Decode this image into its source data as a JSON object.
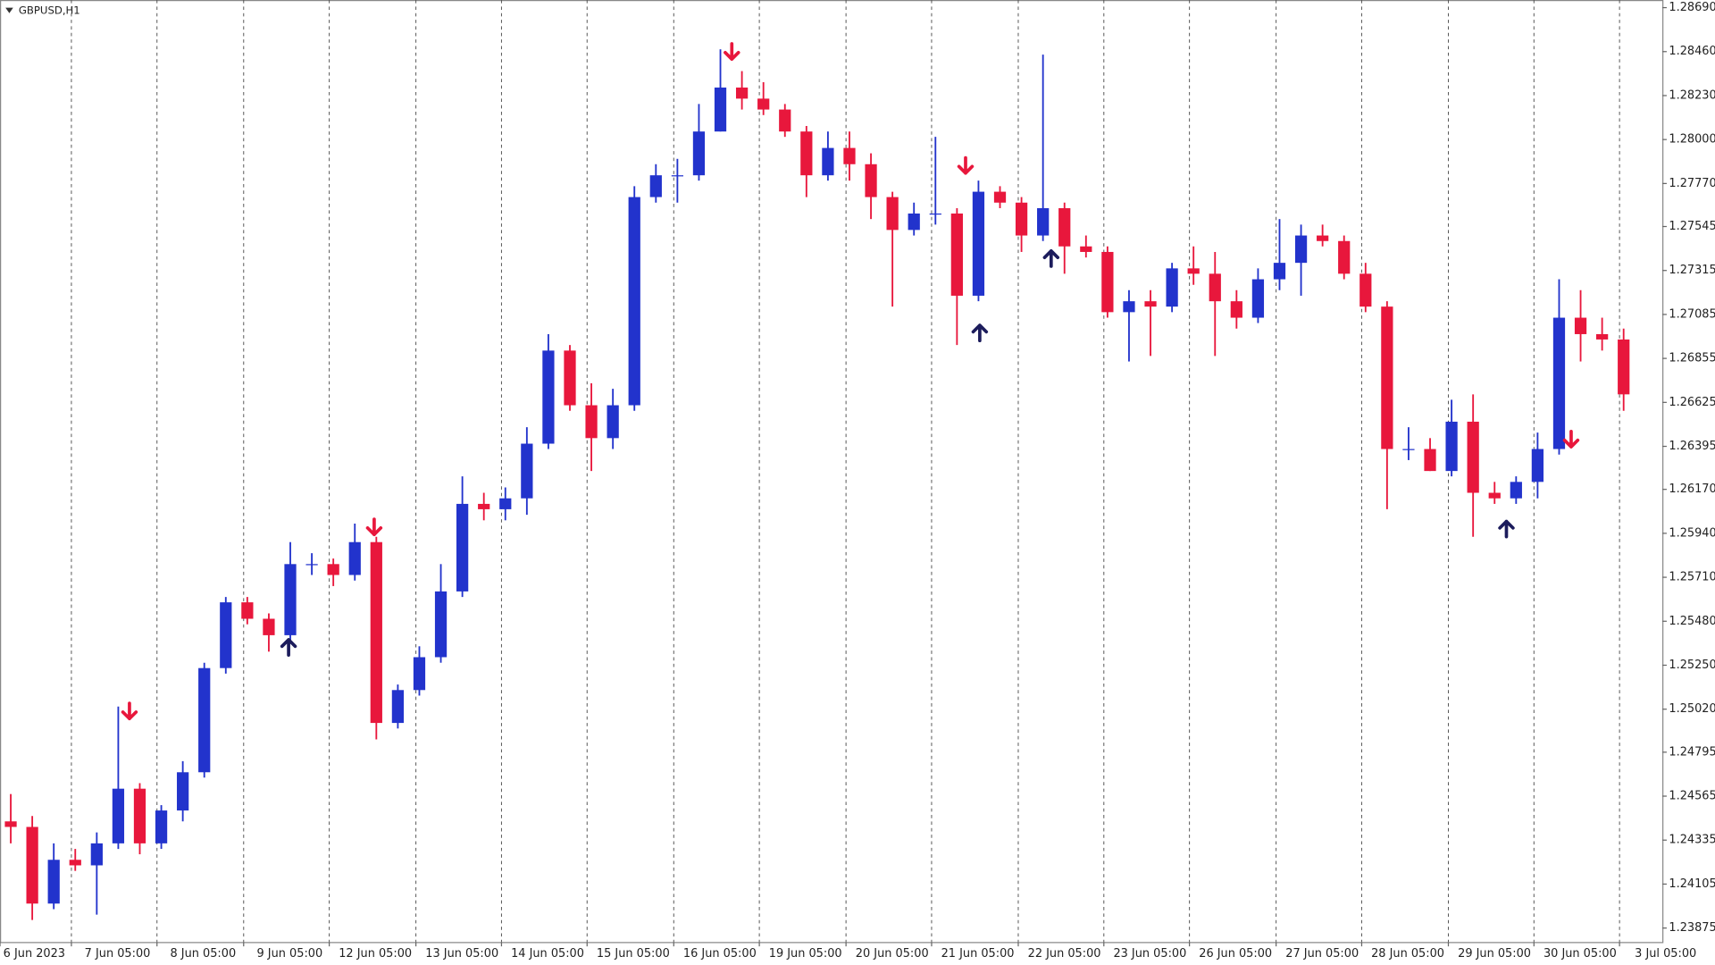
{
  "chart_data": {
    "type": "candlestick",
    "title": "GBPUSD,H1",
    "open": [
      1.24433,
      1.24404,
      1.24003,
      1.24232,
      1.24203,
      1.24318,
      1.24604,
      1.24318,
      1.2449,
      1.2469,
      1.25235,
      1.25579,
      1.25493,
      1.25407,
      1.25779,
      1.25779,
      1.25722,
      1.25894,
      1.24948,
      1.2512,
      1.25292,
      1.25636,
      1.26094,
      1.26066,
      1.26123,
      1.26409,
      1.26896,
      1.2661,
      1.26438,
      1.2661,
      1.27699,
      1.27813,
      1.27813,
      1.28042,
      1.28272,
      1.28214,
      1.28157,
      1.28042,
      1.27813,
      1.27956,
      1.27871,
      1.27699,
      1.27527,
      1.27613,
      1.27613,
      1.27183,
      1.27727,
      1.2767,
      1.27498,
      1.27641,
      1.27441,
      1.27412,
      1.27097,
      1.27154,
      1.27126,
      1.27326,
      1.27298,
      1.27154,
      1.27068,
      1.27269,
      1.27355,
      1.27498,
      1.27469,
      1.27298,
      1.27126,
      1.26381,
      1.26381,
      1.26266,
      1.26524,
      1.26152,
      1.26123,
      1.26209,
      1.26381,
      1.27068,
      1.26982,
      1.26954
    ],
    "high": [
      1.24576,
      1.24461,
      1.24318,
      1.24289,
      1.24375,
      1.25034,
      1.24633,
      1.24518,
      1.24748,
      1.25263,
      1.25607,
      1.25607,
      1.25521,
      1.25894,
      1.25836,
      1.25808,
      1.25991,
      1.25922,
      1.25149,
      1.25349,
      1.25779,
      1.26238,
      1.26152,
      1.2618,
      1.26495,
      1.26982,
      1.26925,
      1.26725,
      1.26696,
      1.27756,
      1.27871,
      1.27899,
      1.28186,
      1.28472,
      1.28358,
      1.283,
      1.28186,
      1.28071,
      1.28042,
      1.28042,
      1.27928,
      1.27727,
      1.2767,
      1.28014,
      1.27641,
      1.27785,
      1.27756,
      1.27699,
      1.28444,
      1.2767,
      1.27498,
      1.27441,
      1.27212,
      1.27212,
      1.27355,
      1.27441,
      1.27412,
      1.27212,
      1.27326,
      1.27584,
      1.27555,
      1.27555,
      1.27498,
      1.27355,
      1.27154,
      1.26495,
      1.26438,
      1.26639,
      1.26667,
      1.26209,
      1.26238,
      1.26467,
      1.27269,
      1.27212,
      1.27068,
      1.27011
    ],
    "low": [
      1.24318,
      1.23917,
      1.23974,
      1.24174,
      1.23945,
      1.24289,
      1.24261,
      1.24289,
      1.24433,
      1.24662,
      1.25206,
      1.25464,
      1.25321,
      1.25378,
      1.25722,
      1.25664,
      1.25693,
      1.24862,
      1.24919,
      1.25091,
      1.25263,
      1.25607,
      1.26008,
      1.26008,
      1.26037,
      1.26381,
      1.26581,
      1.26266,
      1.26381,
      1.26581,
      1.2767,
      1.2767,
      1.27785,
      1.28042,
      1.28157,
      1.28128,
      1.28014,
      1.27699,
      1.27785,
      1.27785,
      1.27584,
      1.27126,
      1.27498,
      1.27555,
      1.26925,
      1.27154,
      1.27641,
      1.27412,
      1.27469,
      1.27298,
      1.27383,
      1.27068,
      1.26839,
      1.26868,
      1.27097,
      1.2724,
      1.26868,
      1.27011,
      1.2704,
      1.27212,
      1.27183,
      1.27441,
      1.27269,
      1.27097,
      1.26066,
      1.26323,
      1.26266,
      1.26238,
      1.25922,
      1.26094,
      1.26094,
      1.26123,
      1.26352,
      1.26839,
      1.26896,
      1.26581
    ],
    "close": [
      1.24404,
      1.24003,
      1.24232,
      1.24203,
      1.24318,
      1.24604,
      1.24318,
      1.2449,
      1.2469,
      1.25235,
      1.25579,
      1.25493,
      1.25407,
      1.25779,
      1.25779,
      1.25722,
      1.25894,
      1.24948,
      1.2512,
      1.25292,
      1.25636,
      1.26094,
      1.26066,
      1.26123,
      1.26409,
      1.26896,
      1.2661,
      1.26438,
      1.2661,
      1.27699,
      1.27813,
      1.27813,
      1.28042,
      1.28272,
      1.28214,
      1.28157,
      1.28042,
      1.27813,
      1.27956,
      1.27871,
      1.27699,
      1.27527,
      1.27613,
      1.27613,
      1.27183,
      1.27727,
      1.2767,
      1.27498,
      1.27641,
      1.27441,
      1.27412,
      1.27097,
      1.27154,
      1.27126,
      1.27326,
      1.27298,
      1.27154,
      1.27068,
      1.27269,
      1.27355,
      1.27498,
      1.27469,
      1.27298,
      1.27126,
      1.26381,
      1.26381,
      1.26266,
      1.26524,
      1.26152,
      1.26123,
      1.26209,
      1.26381,
      1.27068,
      1.26982,
      1.26954,
      1.26667
    ],
    "up_color": "#2233cc",
    "down_color": "#e8173c",
    "signals": [
      {
        "kind": "sell",
        "color": "#e8173c",
        "x": [
          6.02,
          17.4,
          34.03,
          44.9,
          73.06
        ],
        "price": [
          1.25005,
          1.25968,
          1.28455,
          1.27859,
          1.26427
        ]
      },
      {
        "kind": "buy",
        "color": "#1c1c5c",
        "x": [
          13.42,
          45.56,
          48.88,
          70.05
        ],
        "price": [
          1.25349,
          1.26994,
          1.27383,
          1.25968
        ]
      }
    ],
    "xlim": [
      0,
      77.3
    ],
    "ylim": [
      1.23802,
      1.2873
    ],
    "grid": "vertical",
    "xticks": [
      {
        "value": 0,
        "label": "6 Jun 2023"
      },
      {
        "value": 3.32,
        "label": "7 Jun 05:00"
      },
      {
        "value": 7.3,
        "label": "8 Jun 05:00"
      },
      {
        "value": 11.33,
        "label": "9 Jun 05:00"
      },
      {
        "value": 15.31,
        "label": "12 Jun 05:00"
      },
      {
        "value": 19.34,
        "label": "13 Jun 05:00"
      },
      {
        "value": 23.32,
        "label": "14 Jun 05:00"
      },
      {
        "value": 27.3,
        "label": "15 Jun 05:00"
      },
      {
        "value": 31.33,
        "label": "16 Jun 05:00"
      },
      {
        "value": 35.31,
        "label": "19 Jun 05:00"
      },
      {
        "value": 39.34,
        "label": "20 Jun 05:00"
      },
      {
        "value": 43.32,
        "label": "21 Jun 05:00"
      },
      {
        "value": 47.35,
        "label": "22 Jun 05:00"
      },
      {
        "value": 51.33,
        "label": "23 Jun 05:00"
      },
      {
        "value": 55.31,
        "label": "26 Jun 05:00"
      },
      {
        "value": 59.34,
        "label": "27 Jun 05:00"
      },
      {
        "value": 63.32,
        "label": "28 Jun 05:00"
      },
      {
        "value": 67.35,
        "label": "29 Jun 05:00"
      },
      {
        "value": 71.33,
        "label": "30 Jun 05:00"
      },
      {
        "value": 75.31,
        "label": "3 Jul 05:00"
      }
    ],
    "yticks": [
      {
        "value": 1.2869,
        "label": "1.28690"
      },
      {
        "value": 1.2846,
        "label": "1.28460"
      },
      {
        "value": 1.2823,
        "label": "1.28230"
      },
      {
        "value": 1.28,
        "label": "1.28000"
      },
      {
        "value": 1.2777,
        "label": "1.27770"
      },
      {
        "value": 1.27545,
        "label": "1.27545"
      },
      {
        "value": 1.27315,
        "label": "1.27315"
      },
      {
        "value": 1.27085,
        "label": "1.27085"
      },
      {
        "value": 1.26855,
        "label": "1.26855"
      },
      {
        "value": 1.26625,
        "label": "1.26625"
      },
      {
        "value": 1.26395,
        "label": "1.26395"
      },
      {
        "value": 1.2617,
        "label": "1.26170"
      },
      {
        "value": 1.2594,
        "label": "1.25940"
      },
      {
        "value": 1.2571,
        "label": "1.25710"
      },
      {
        "value": 1.2548,
        "label": "1.25480"
      },
      {
        "value": 1.2525,
        "label": "1.25250"
      },
      {
        "value": 1.2502,
        "label": "1.25020"
      },
      {
        "value": 1.24795,
        "label": "1.24795"
      },
      {
        "value": 1.24565,
        "label": "1.24565"
      },
      {
        "value": 1.24335,
        "label": "1.24335"
      },
      {
        "value": 1.24105,
        "label": "1.24105"
      },
      {
        "value": 1.23875,
        "label": "1.23875"
      }
    ]
  }
}
